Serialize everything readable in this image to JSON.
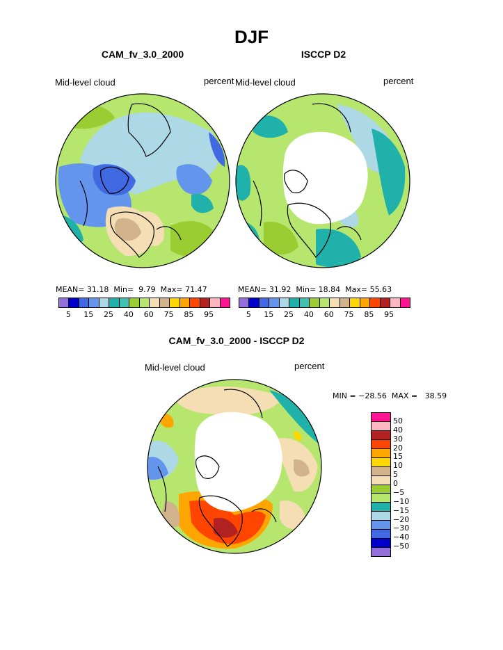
{
  "page": {
    "title": "DJF"
  },
  "panels": [
    {
      "title": "CAM_fv_3.0_2000",
      "left_label": "Mid-level cloud",
      "right_label": "percent",
      "stats": {
        "mean_label": "MEAN=",
        "mean": "31.18",
        "min_label": "Min=",
        "min": "9.79",
        "max_label": "Max=",
        "max": "71.47"
      }
    },
    {
      "title": "ISCCP D2",
      "left_label": "Mid-level cloud",
      "right_label": "percent",
      "stats": {
        "mean_label": "MEAN=",
        "mean": "31.92",
        "min_label": "Min=",
        "min": "18.84",
        "max_label": "Max=",
        "max": "55.63"
      }
    }
  ],
  "colorbar": {
    "colors": [
      "#9370db",
      "#0000cd",
      "#4169e1",
      "#6495ed",
      "#add8e6",
      "#20b2aa",
      "#40c0b0",
      "#9acd32",
      "#b6e66e",
      "#f5deb3",
      "#d2b48c",
      "#ffd700",
      "#ffa500",
      "#ff4500",
      "#b22222",
      "#ffb6c1",
      "#ff1493"
    ],
    "tick_labels": [
      "5",
      "15",
      "25",
      "40",
      "60",
      "75",
      "85",
      "95"
    ]
  },
  "diff": {
    "title": "CAM_fv_3.0_2000 - ISCCP D2",
    "left_label": "Mid-level cloud",
    "right_label": "percent",
    "minmax_text": "MIN = −28.56  MAX =   38.59",
    "colors": [
      "#ff1493",
      "#ffb6c1",
      "#b22222",
      "#ff4500",
      "#ffa500",
      "#ffd700",
      "#d2b48c",
      "#f5deb3",
      "#9acd32",
      "#b6e66e",
      "#20b2aa",
      "#add8e6",
      "#6495ed",
      "#4169e1",
      "#0000cd",
      "#9370db"
    ],
    "labels": [
      "50",
      "40",
      "30",
      "20",
      "15",
      "10",
      "5",
      "0",
      "−5",
      "−10",
      "−15",
      "−20",
      "−30",
      "−40",
      "−50"
    ]
  },
  "chart_data": [
    {
      "type": "heatmap",
      "title": "CAM_fv_3.0_2000",
      "variable": "Mid-level cloud",
      "units": "percent",
      "season": "DJF",
      "stats": {
        "mean": 31.18,
        "min": 9.79,
        "max": 71.47
      },
      "levels": [
        5,
        15,
        25,
        40,
        60,
        75,
        85,
        95
      ]
    },
    {
      "type": "heatmap",
      "title": "ISCCP D2",
      "variable": "Mid-level cloud",
      "units": "percent",
      "season": "DJF",
      "stats": {
        "mean": 31.92,
        "min": 18.84,
        "max": 55.63
      },
      "levels": [
        5,
        15,
        25,
        40,
        60,
        75,
        85,
        95
      ]
    },
    {
      "type": "heatmap",
      "title": "CAM_fv_3.0_2000 - ISCCP D2",
      "variable": "Mid-level cloud",
      "units": "percent",
      "season": "DJF",
      "stats": {
        "min": -28.56,
        "max": 38.59
      },
      "levels": [
        -50,
        -40,
        -30,
        -20,
        -15,
        -10,
        -5,
        0,
        5,
        10,
        15,
        20,
        30,
        40,
        50
      ]
    }
  ]
}
